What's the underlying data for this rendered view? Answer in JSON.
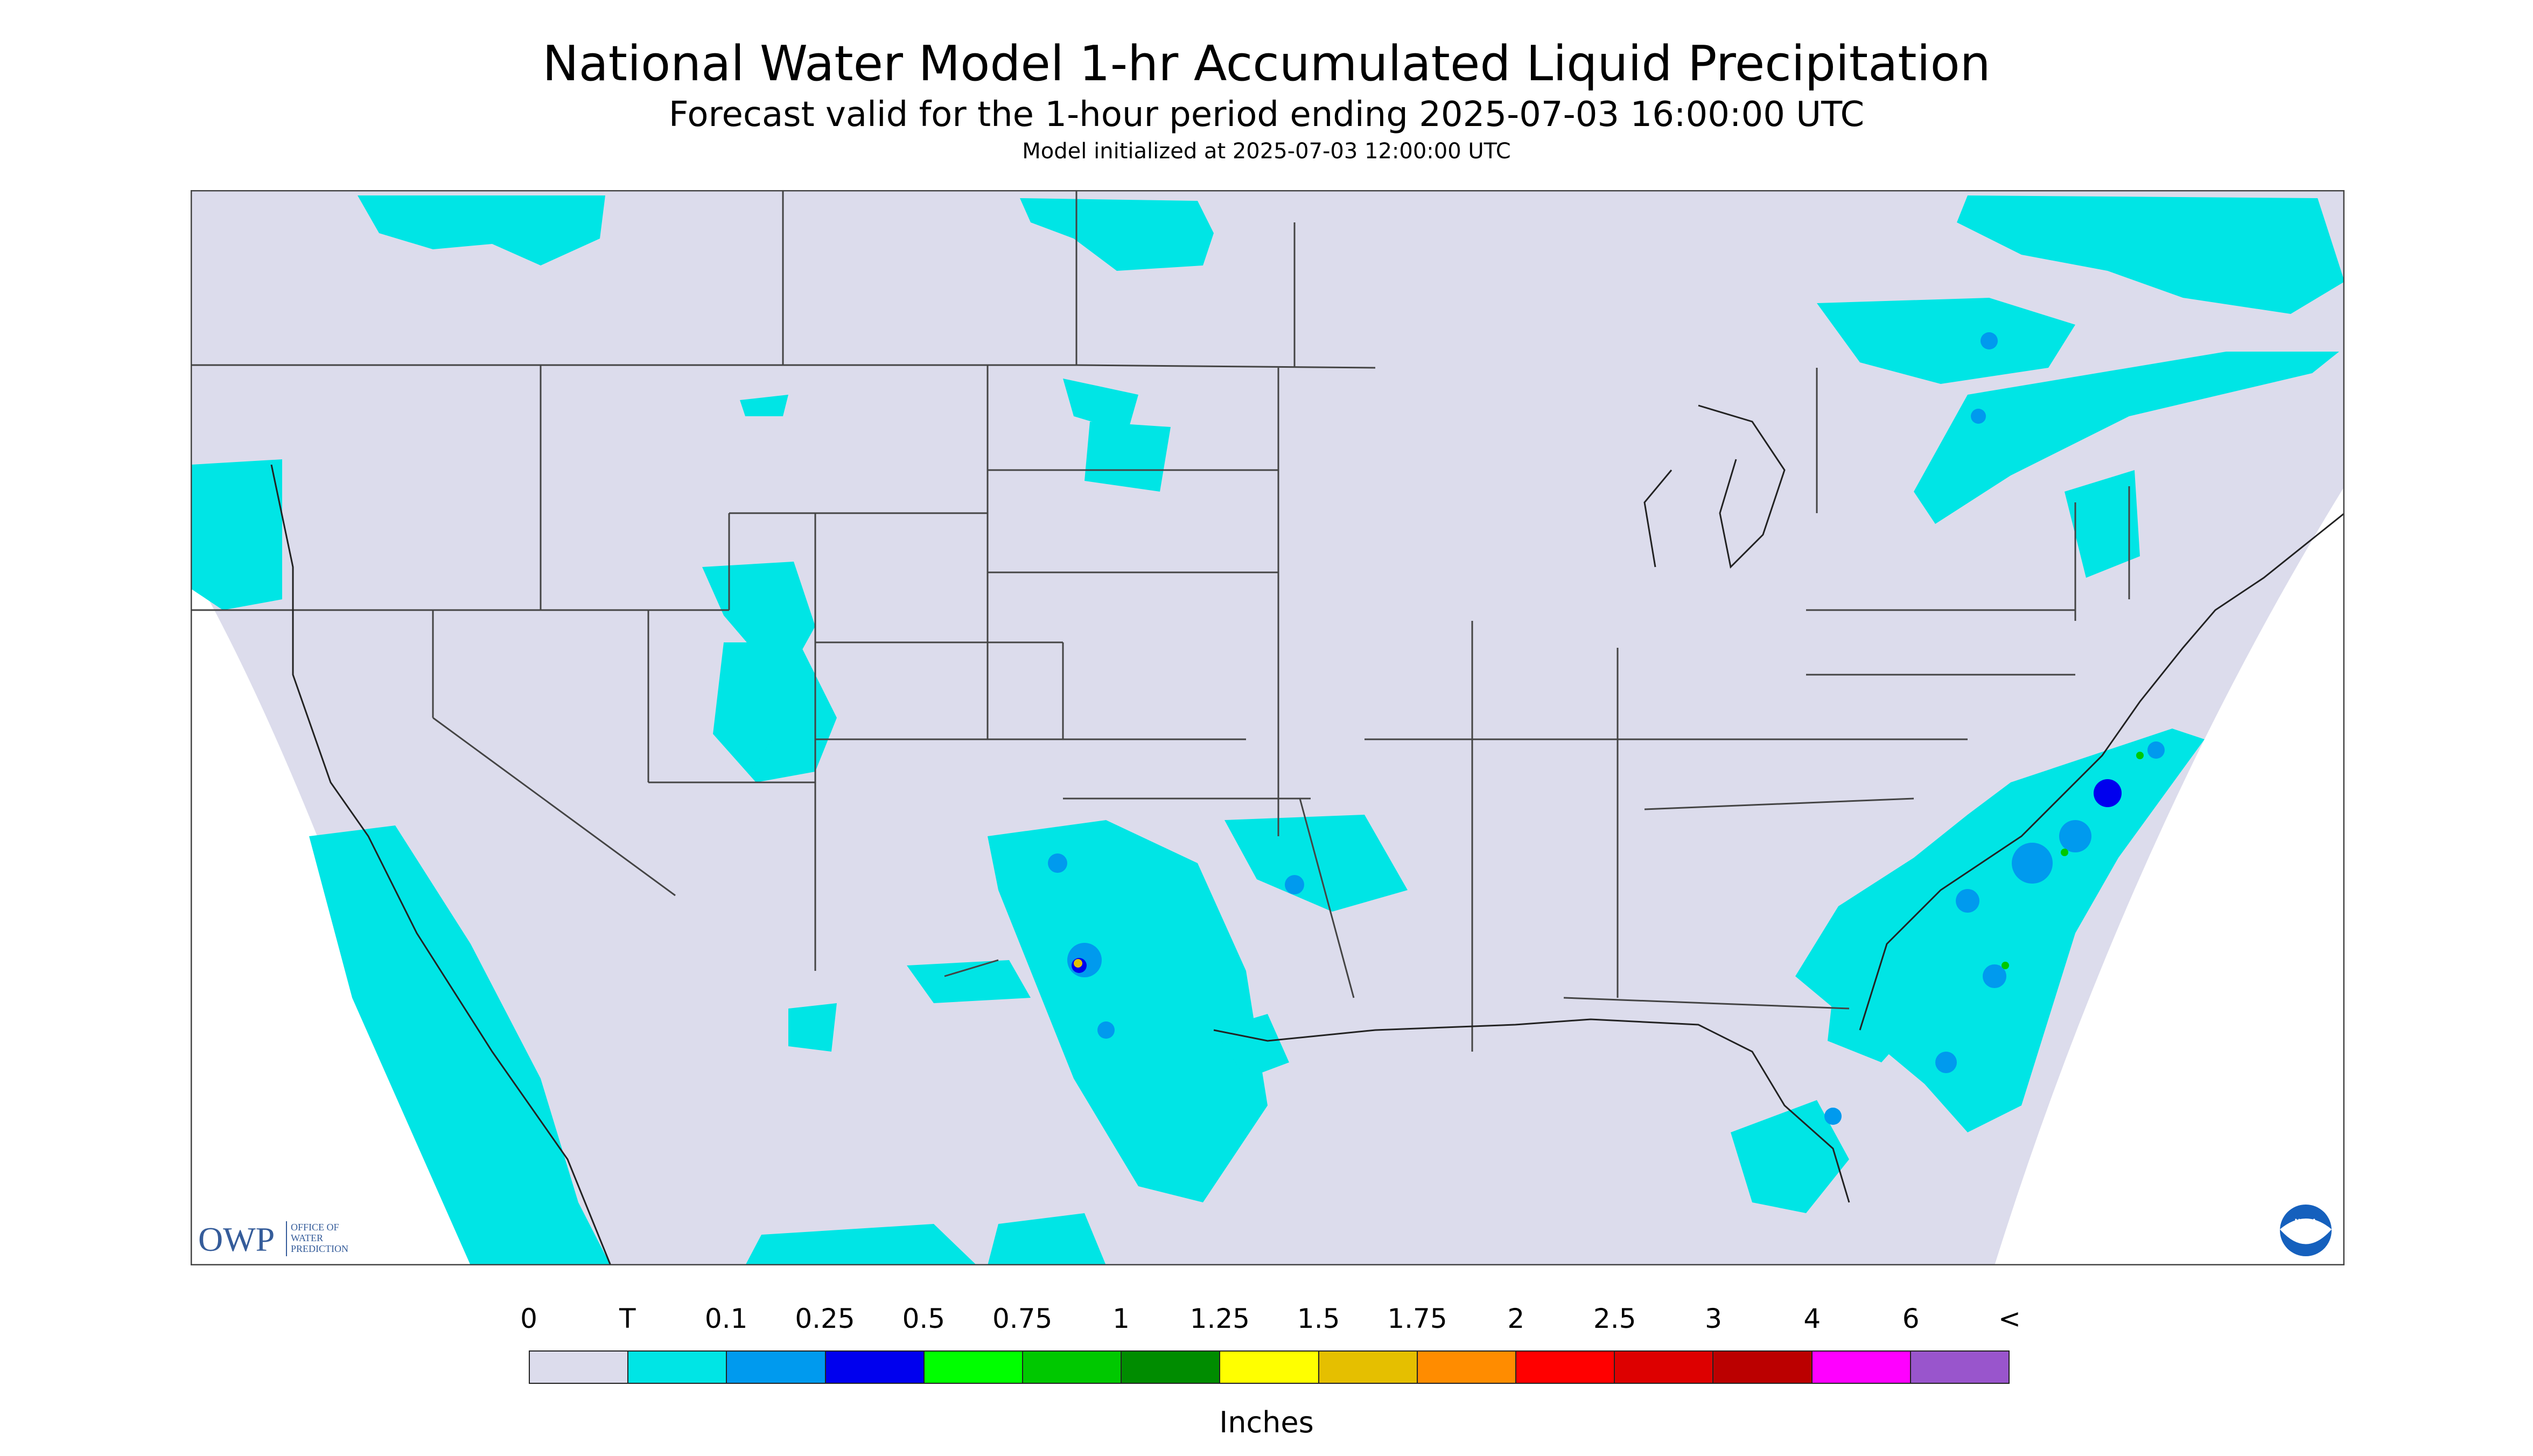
{
  "title": "National Water Model 1-hr Accumulated Liquid Precipitation",
  "subtitle": "Forecast valid for the 1-hour period ending 2025-07-03 16:00:00 UTC",
  "init_line": "Model initialized at 2025-07-03 12:00:00 UTC",
  "logos": {
    "owp_mark": "OWP",
    "owp_text": [
      "OFFICE OF",
      "WATER",
      "PREDICTION"
    ],
    "noaa_mark": "NOAA"
  },
  "legend": {
    "labels": [
      "0",
      "T",
      "0.1",
      "0.25",
      "0.5",
      "0.75",
      "1",
      "1.25",
      "1.5",
      "1.75",
      "2",
      "2.5",
      "3",
      "4",
      "6",
      "<"
    ],
    "colors": [
      "#dcdcec",
      "#00e5e5",
      "#009aee",
      "#0000ee",
      "#00ff00",
      "#00c800",
      "#008c00",
      "#ffff00",
      "#e5bf00",
      "#ff8c00",
      "#ff0000",
      "#dd0000",
      "#bb0000",
      "#ff00ff",
      "#9955cc"
    ],
    "units": "Inches"
  },
  "colors": {
    "no_precip": "#dcdcec",
    "trace": "#00e5e5",
    "outside_domain": "#ffffff",
    "borders": "#444444"
  }
}
